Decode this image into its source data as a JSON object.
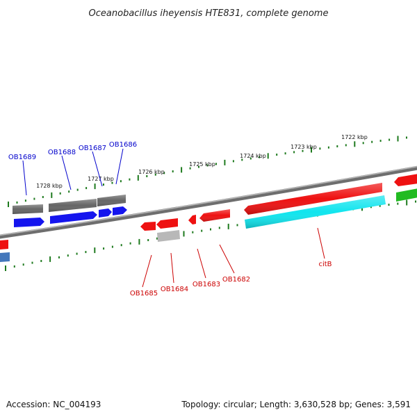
{
  "title": "Oceanobacillus iheyensis HTE831, complete genome",
  "footer": {
    "accession": "Accession: NC_004193",
    "summary": "Topology: circular; Length: 3,630,528 bp; Genes: 3,591"
  },
  "colors": {
    "backbone": "#7a7a7a",
    "tick": "#1e7a1e",
    "forward_label": "#0000cc",
    "reverse_label": "#cc0000",
    "red_feature": "#ee1111",
    "gray_feature": "#666666",
    "light_gray_feature": "#b8b8b8",
    "blue_feature": "#1515ee",
    "cyan_feature": "#11e5ee",
    "green_feature": "#22bb22",
    "steel_feature": "#4477bb"
  },
  "scale_labels": [
    "1722 kbp",
    "1723 kbp",
    "1724 kbp",
    "1725 kbp",
    "1726 kbp",
    "1727 kbp",
    "1728 kbp"
  ],
  "forward_genes": [
    "OB1689",
    "OB1688",
    "OB1687",
    "OB1686"
  ],
  "reverse_genes": [
    "OB1685",
    "OB1684",
    "OB1683",
    "OB1682",
    "citB"
  ]
}
